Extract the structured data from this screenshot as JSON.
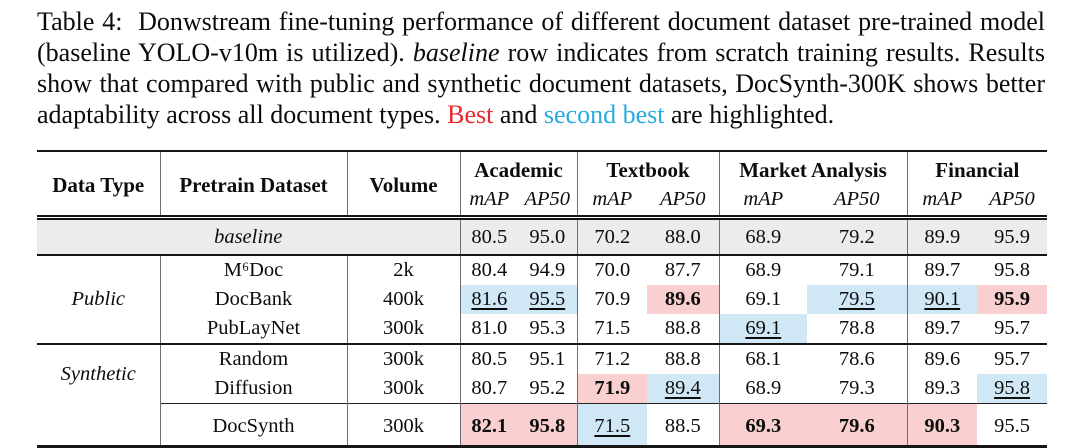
{
  "caption": {
    "segments": [
      {
        "t": "Table 4:  Donwstream fine-tuning performance of different document dataset pre-trained model (baseline YOLO-v10m is utilized). ",
        "s": "normal"
      },
      {
        "t": "baseline",
        "s": "italic"
      },
      {
        "t": " row indicates from scratch training results. Results show that compared with public and synthetic document datasets, DocSynth-300K shows better adaptability across all document types. ",
        "s": "normal"
      },
      {
        "t": "Best",
        "s": "best"
      },
      {
        "t": " and ",
        "s": "normal"
      },
      {
        "t": "second best",
        "s": "second"
      },
      {
        "t": " are highlighted.",
        "s": "normal"
      }
    ]
  },
  "colors": {
    "best_highlight_bg": "#f9d0cf",
    "second_highlight_bg": "#d0e8f6",
    "baseline_row_bg": "#ececec",
    "caption_best_text": "#e9272b",
    "caption_second_text": "#29aae1"
  },
  "table": {
    "headers": {
      "data_type": "Data Type",
      "pretrain_dataset": "Pretrain Dataset",
      "volume": "Volume",
      "groups": [
        {
          "label": "Academic",
          "sub": [
            "mAP",
            "AP50"
          ]
        },
        {
          "label": "Textbook",
          "sub": [
            "mAP",
            "AP50"
          ]
        },
        {
          "label": "Market Analysis",
          "sub": [
            "mAP",
            "AP50"
          ]
        },
        {
          "label": "Financial",
          "sub": [
            "mAP",
            "AP50"
          ]
        }
      ]
    },
    "baseline_row": {
      "label": "baseline",
      "values": [
        {
          "v": "80.5"
        },
        {
          "v": "95.0"
        },
        {
          "v": "70.2"
        },
        {
          "v": "88.0"
        },
        {
          "v": "68.9"
        },
        {
          "v": "79.2"
        },
        {
          "v": "89.9"
        },
        {
          "v": "95.9"
        }
      ]
    },
    "sections": [
      {
        "data_type": "Public",
        "rows": [
          {
            "dataset": "M⁶Doc",
            "volume": "2k",
            "values": [
              {
                "v": "80.4"
              },
              {
                "v": "94.9"
              },
              {
                "v": "70.0"
              },
              {
                "v": "87.7"
              },
              {
                "v": "68.9"
              },
              {
                "v": "79.1"
              },
              {
                "v": "89.7"
              },
              {
                "v": "95.8"
              }
            ]
          },
          {
            "dataset": "DocBank",
            "volume": "400k",
            "values": [
              {
                "v": "81.6",
                "m": "second"
              },
              {
                "v": "95.5",
                "m": "second"
              },
              {
                "v": "70.9"
              },
              {
                "v": "89.6",
                "m": "best"
              },
              {
                "v": "69.1"
              },
              {
                "v": "79.5",
                "m": "second"
              },
              {
                "v": "90.1",
                "m": "second"
              },
              {
                "v": "95.9",
                "m": "best"
              }
            ]
          },
          {
            "dataset": "PubLayNet",
            "volume": "300k",
            "values": [
              {
                "v": "81.0"
              },
              {
                "v": "95.3"
              },
              {
                "v": "71.5"
              },
              {
                "v": "88.8"
              },
              {
                "v": "69.1",
                "m": "second"
              },
              {
                "v": "78.8"
              },
              {
                "v": "89.7"
              },
              {
                "v": "95.7"
              }
            ]
          }
        ]
      },
      {
        "data_type": "Synthetic",
        "rows": [
          {
            "dataset": "Random",
            "volume": "300k",
            "values": [
              {
                "v": "80.5"
              },
              {
                "v": "95.1"
              },
              {
                "v": "71.2"
              },
              {
                "v": "88.8"
              },
              {
                "v": "68.1"
              },
              {
                "v": "78.6"
              },
              {
                "v": "89.6"
              },
              {
                "v": "95.7"
              }
            ]
          },
          {
            "dataset": "Diffusion",
            "volume": "300k",
            "values": [
              {
                "v": "80.7"
              },
              {
                "v": "95.2"
              },
              {
                "v": "71.9",
                "m": "best"
              },
              {
                "v": "89.4",
                "m": "second"
              },
              {
                "v": "68.9"
              },
              {
                "v": "79.3"
              },
              {
                "v": "89.3"
              },
              {
                "v": "95.8",
                "m": "second"
              }
            ]
          }
        ]
      }
    ],
    "final_row": {
      "data_type": "",
      "dataset": "DocSynth",
      "volume": "300k",
      "values": [
        {
          "v": "82.1",
          "m": "best"
        },
        {
          "v": "95.8",
          "m": "best"
        },
        {
          "v": "71.5",
          "m": "second"
        },
        {
          "v": "88.5"
        },
        {
          "v": "69.3",
          "m": "best"
        },
        {
          "v": "79.6",
          "m": "best"
        },
        {
          "v": "90.3",
          "m": "best"
        },
        {
          "v": "95.5"
        }
      ]
    }
  }
}
